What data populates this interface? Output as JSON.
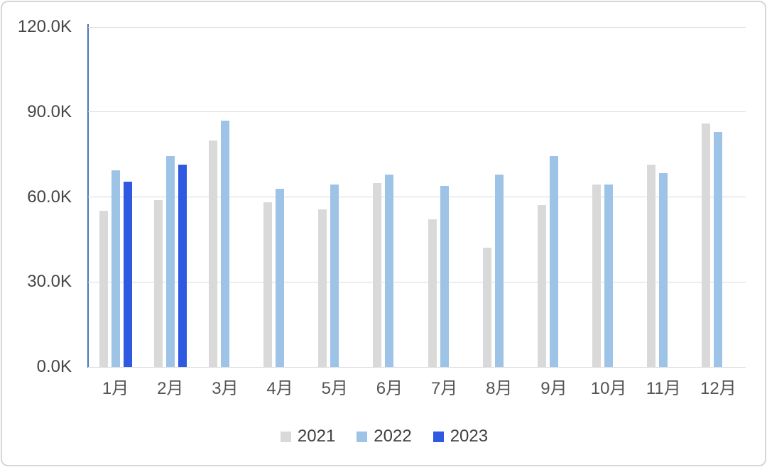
{
  "chart_data": {
    "type": "bar",
    "title": "",
    "xlabel": "",
    "ylabel": "",
    "unit": "K",
    "values_unit": "thousands (K)",
    "categories": [
      "1月",
      "2月",
      "3月",
      "4月",
      "5月",
      "6月",
      "7月",
      "8月",
      "9月",
      "10月",
      "11月",
      "12月"
    ],
    "series": [
      {
        "name": "2021",
        "color": "#d9d9d9",
        "values": [
          55.0,
          59.0,
          80.0,
          58.0,
          55.5,
          65.0,
          52.0,
          42.0,
          57.0,
          64.5,
          71.5,
          86.0
        ]
      },
      {
        "name": "2022",
        "color": "#9dc3e6",
        "values": [
          69.5,
          74.5,
          87.0,
          63.0,
          64.5,
          68.0,
          64.0,
          68.0,
          74.5,
          64.5,
          68.5,
          83.0
        ]
      },
      {
        "name": "2023",
        "color": "#2e59e0",
        "values": [
          65.5,
          71.5,
          null,
          null,
          null,
          null,
          null,
          null,
          null,
          null,
          null,
          null
        ]
      }
    ],
    "ylim": [
      0,
      120
    ],
    "ytick_step": 30,
    "yticks": [
      0,
      30,
      60,
      90,
      120
    ],
    "ytick_labels": [
      "0.0K",
      "30.0K",
      "60.0K",
      "90.0K",
      "120.0K"
    ],
    "grid": true,
    "gridline_color": "#d9d9d9",
    "axis_line_color": "#4a72b8",
    "tick_text_color": "#4a4a4a",
    "legend_position": "bottom",
    "legend": [
      "2021",
      "2022",
      "2023"
    ]
  }
}
